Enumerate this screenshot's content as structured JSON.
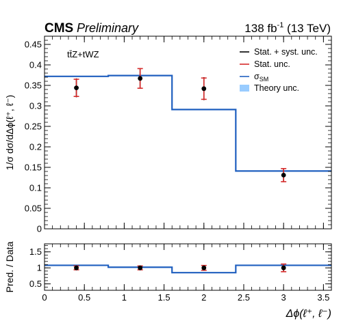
{
  "header": {
    "experiment": "CMS",
    "status": "Preliminary",
    "lumi_value": "138 fb",
    "lumi_exp": "-1",
    "energy": " (13 TeV)"
  },
  "chart_data": [
    {
      "type": "line",
      "subtype": "step-histogram-with-error-bars",
      "panel": "main",
      "process_label": "tt̄Z+tWZ",
      "ylabel": "1/σ dσ/dΔϕ(ℓ⁺, ℓ⁻)",
      "xlim": [
        0,
        3.6
      ],
      "ylim": [
        0,
        0.47
      ],
      "yticks": [
        0,
        0.05,
        0.1,
        0.15,
        0.2,
        0.25,
        0.3,
        0.35,
        0.4,
        0.45
      ],
      "ytick_labels": [
        "0",
        "0.05",
        "0.1",
        "0.15",
        "0.2",
        "0.25",
        "0.3",
        "0.35",
        "0.4",
        "0.45"
      ],
      "bin_edges": [
        0,
        0.8,
        1.6,
        2.4,
        3.6
      ],
      "series": [
        {
          "name": "σSM",
          "style": "step",
          "color": "#1f5fbf",
          "values": [
            0.372,
            0.374,
            0.291,
            0.141
          ]
        },
        {
          "name": "Data",
          "style": "points",
          "color": "#000000",
          "x": [
            0.4,
            1.2,
            2.0,
            3.0
          ],
          "y": [
            0.344,
            0.367,
            0.342,
            0.131
          ],
          "total_err_lo": [
            0.023,
            0.025,
            0.028,
            0.017
          ],
          "total_err_hi": [
            0.023,
            0.025,
            0.028,
            0.017
          ],
          "stat_err_lo": [
            0.021,
            0.024,
            0.026,
            0.016
          ],
          "stat_err_hi": [
            0.021,
            0.024,
            0.026,
            0.016
          ]
        }
      ],
      "legend": {
        "position": "top-right",
        "entries": [
          {
            "label": "Stat. + syst. unc.",
            "kind": "line",
            "color": "#000000"
          },
          {
            "label": "Stat. unc.",
            "kind": "line",
            "color": "#d62a2a"
          },
          {
            "label": "σ",
            "sub": "SM",
            "kind": "line",
            "color": "#1f5fbf"
          },
          {
            "label": "Theory unc.",
            "kind": "box",
            "color": "#99ccff"
          }
        ]
      }
    },
    {
      "type": "line",
      "subtype": "ratio-panel",
      "panel": "ratio",
      "ylabel": "Pred. / Data",
      "xlabel_main": "Δϕ",
      "xlabel_args": "(ℓ⁺, ℓ⁻)",
      "xlim": [
        0,
        3.6
      ],
      "ylim": [
        0.3,
        1.75
      ],
      "yticks": [
        0.5,
        1,
        1.5
      ],
      "ytick_labels": [
        "0.5",
        "1",
        "1.5"
      ],
      "xticks": [
        0,
        0.5,
        1,
        1.5,
        2,
        2.5,
        3,
        3.5
      ],
      "xtick_labels": [
        "0",
        "0.5",
        "1",
        "1.5",
        "2",
        "2.5",
        "3",
        "3.5"
      ],
      "bin_edges": [
        0,
        0.8,
        1.6,
        2.4,
        3.6
      ],
      "series": [
        {
          "name": "σSM / Data",
          "style": "step",
          "color": "#1f5fbf",
          "values": [
            1.08,
            1.02,
            0.85,
            1.08
          ]
        },
        {
          "name": "Data",
          "style": "points",
          "color": "#000000",
          "x": [
            0.4,
            1.2,
            2.0,
            3.0
          ],
          "y": [
            1.0,
            1.0,
            1.0,
            1.0
          ],
          "total_err_lo": [
            0.07,
            0.07,
            0.08,
            0.13
          ],
          "total_err_hi": [
            0.07,
            0.07,
            0.08,
            0.13
          ],
          "stat_err_lo": [
            0.06,
            0.06,
            0.075,
            0.12
          ],
          "stat_err_hi": [
            0.06,
            0.06,
            0.075,
            0.12
          ]
        }
      ]
    }
  ]
}
